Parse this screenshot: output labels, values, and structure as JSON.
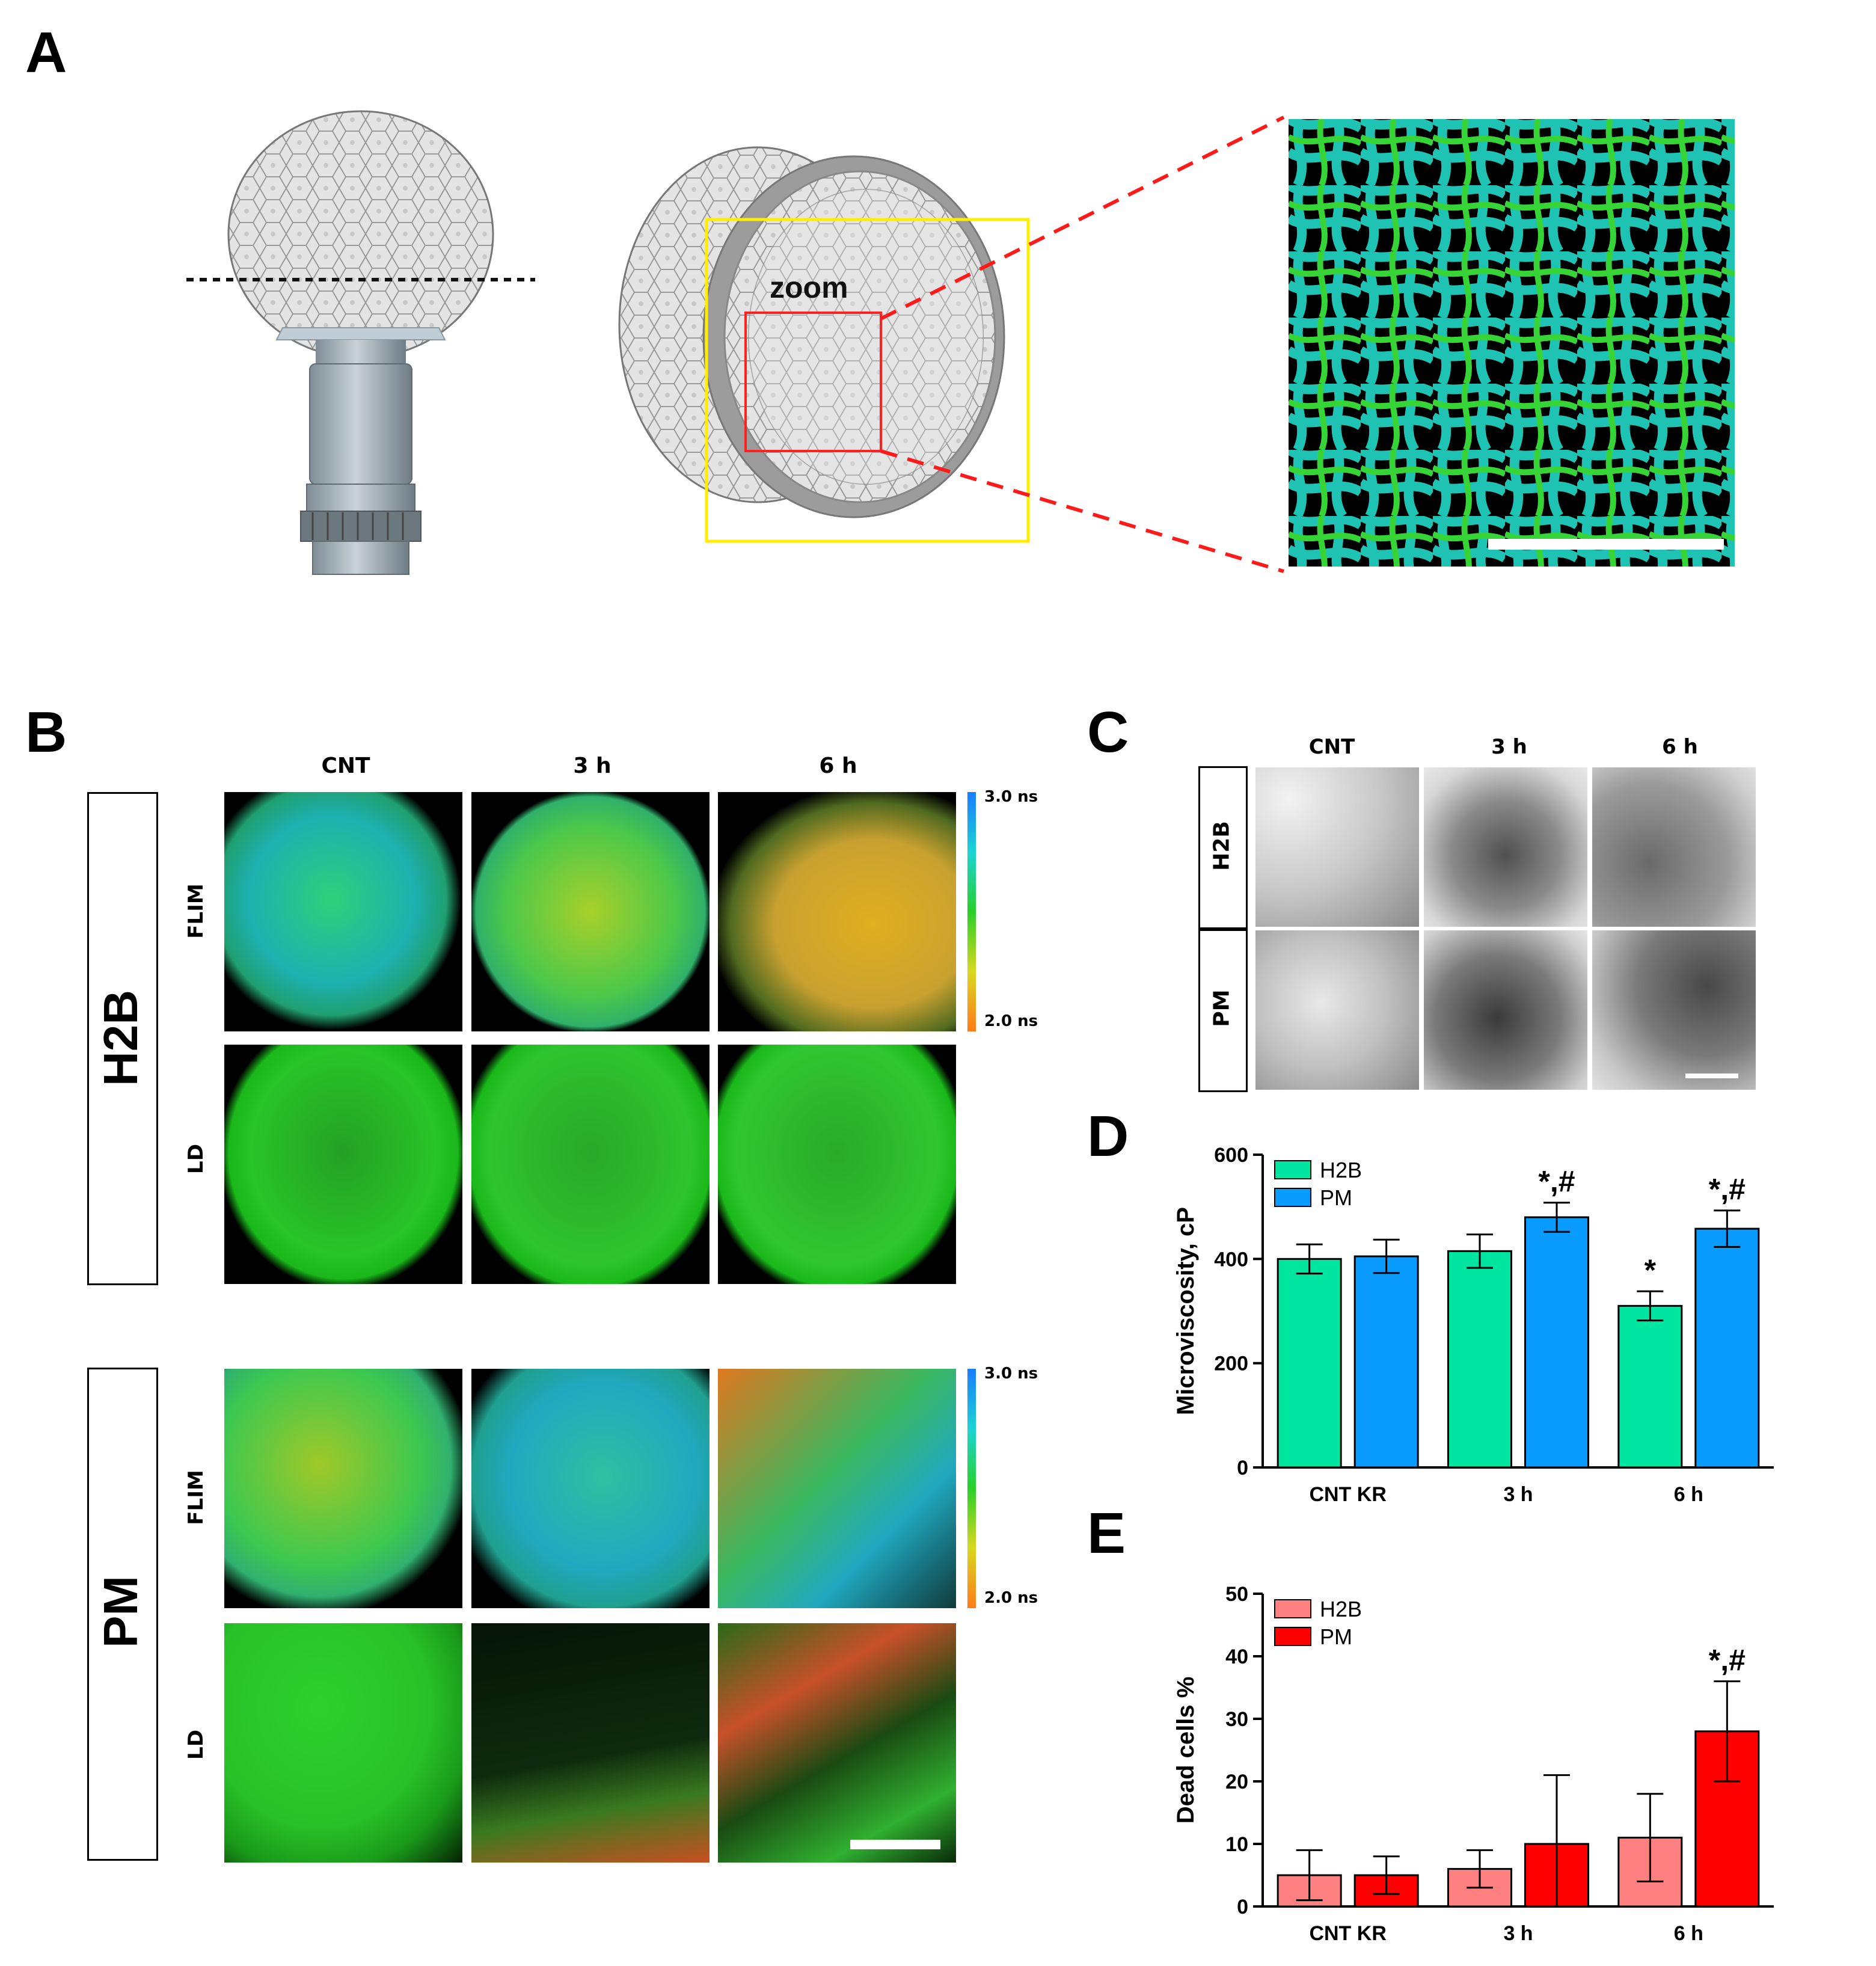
{
  "panels": {
    "A": {
      "letter": "A",
      "zoom_label": "zoom"
    },
    "B": {
      "letter": "B",
      "columns": [
        "CNT",
        "3 h",
        "6 h"
      ],
      "groups": [
        "H2B",
        "PM"
      ],
      "rows": [
        "FLIM",
        "LD"
      ],
      "colorbar": {
        "top": "3.0 ns",
        "bottom": "2.0 ns"
      }
    },
    "C": {
      "letter": "C",
      "columns": [
        "CNT",
        "3 h",
        "6 h"
      ],
      "rows": [
        "H2B",
        "PM"
      ]
    },
    "D": {
      "letter": "D"
    },
    "E": {
      "letter": "E"
    }
  },
  "chart_data": [
    {
      "panel": "D",
      "type": "bar",
      "categories": [
        "CNT KR",
        "3 h",
        "6 h"
      ],
      "series": [
        {
          "name": "H2B",
          "values": [
            400,
            415,
            310
          ],
          "errors": [
            28,
            32,
            28
          ],
          "color": "#00e6a0"
        },
        {
          "name": "PM",
          "values": [
            405,
            480,
            458
          ],
          "errors": [
            32,
            28,
            35
          ],
          "color": "#0a9bff"
        }
      ],
      "annotations": [
        {
          "category": "3 h",
          "series": "PM",
          "text": "*,#"
        },
        {
          "category": "6 h",
          "series": "H2B",
          "text": "*"
        },
        {
          "category": "6 h",
          "series": "PM",
          "text": "*,#"
        }
      ],
      "ylabel": "Microviscosity, cP",
      "ylim": [
        0,
        600
      ],
      "yticks": [
        0,
        200,
        400,
        600
      ],
      "legend": "top-left"
    },
    {
      "panel": "E",
      "type": "bar",
      "categories": [
        "CNT KR",
        "3 h",
        "6 h"
      ],
      "series": [
        {
          "name": "H2B",
          "values": [
            5,
            6,
            11
          ],
          "errors": [
            4,
            3,
            7
          ],
          "color": "#ff8080"
        },
        {
          "name": "PM",
          "values": [
            5,
            10,
            28
          ],
          "errors": [
            3,
            11,
            8
          ],
          "color": "#ff0000"
        }
      ],
      "annotations": [
        {
          "category": "6 h",
          "series": "PM",
          "text": "*,#"
        }
      ],
      "ylabel": "Dead cells %",
      "ylim": [
        0,
        50
      ],
      "yticks": [
        0,
        10,
        20,
        30,
        40,
        50
      ],
      "legend": "top-left"
    }
  ]
}
